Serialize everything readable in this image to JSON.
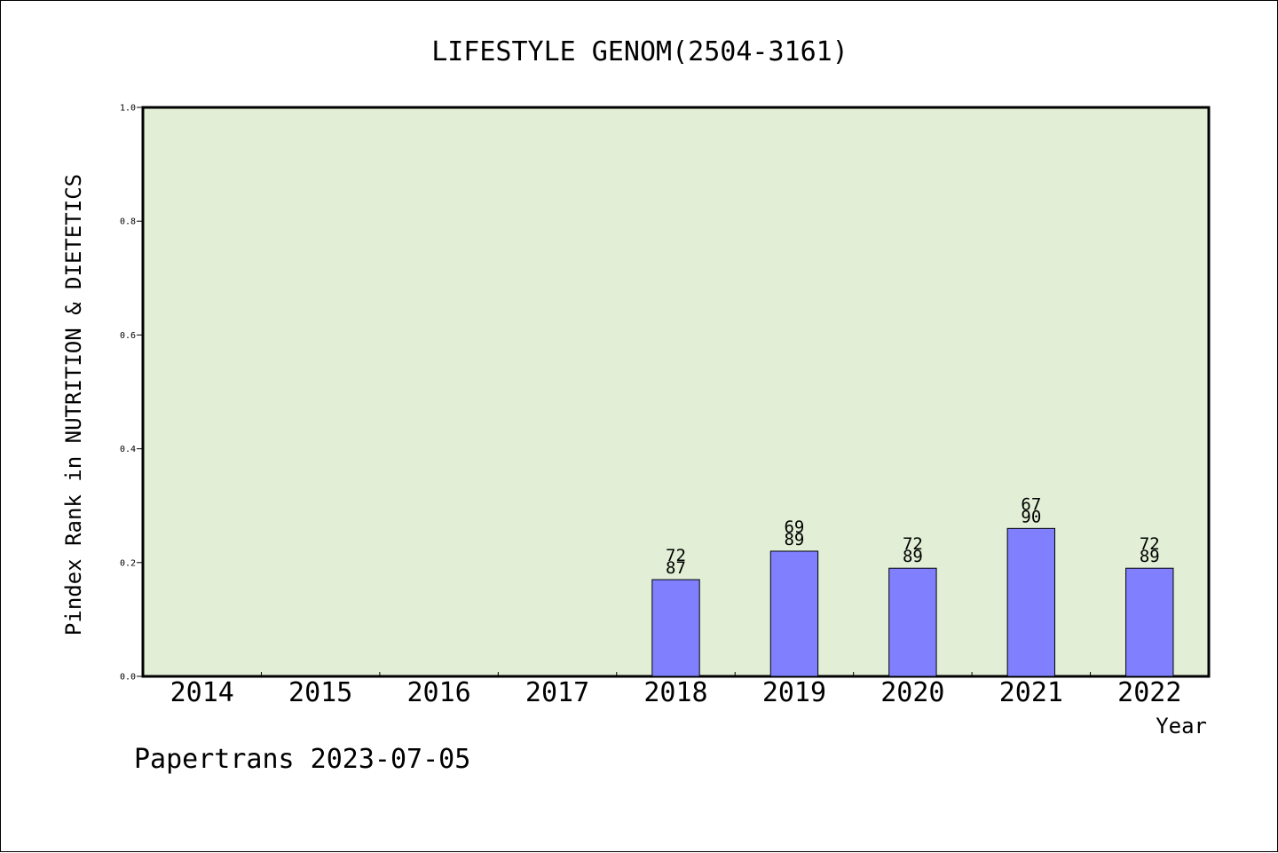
{
  "colors": {
    "plot_background": "#e2efd6",
    "bar_fill": "#8080ff",
    "bar_stroke": "#000000"
  },
  "chart_data": {
    "type": "bar",
    "title": "LIFESTYLE GENOM(2504-3161)",
    "xlabel": "Year",
    "ylabel": "Pindex Rank in NUTRITION & DIETETICS",
    "categories": [
      "2014",
      "2015",
      "2016",
      "2017",
      "2018",
      "2019",
      "2020",
      "2021",
      "2022"
    ],
    "values": [
      null,
      null,
      null,
      null,
      0.17,
      0.22,
      0.19,
      0.26,
      0.19
    ],
    "label_top": [
      "",
      "",
      "",
      "",
      "72",
      "69",
      "72",
      "67",
      "72"
    ],
    "label_bottom": [
      "",
      "",
      "",
      "",
      "87",
      "89",
      "89",
      "90",
      "89"
    ],
    "ylim": [
      0,
      1.0
    ],
    "yticks": [
      "0.0",
      "0.2",
      "0.4",
      "0.6",
      "0.8",
      "1.0"
    ],
    "grid": false,
    "legend": "none"
  },
  "footer": "Papertrans 2023-07-05"
}
